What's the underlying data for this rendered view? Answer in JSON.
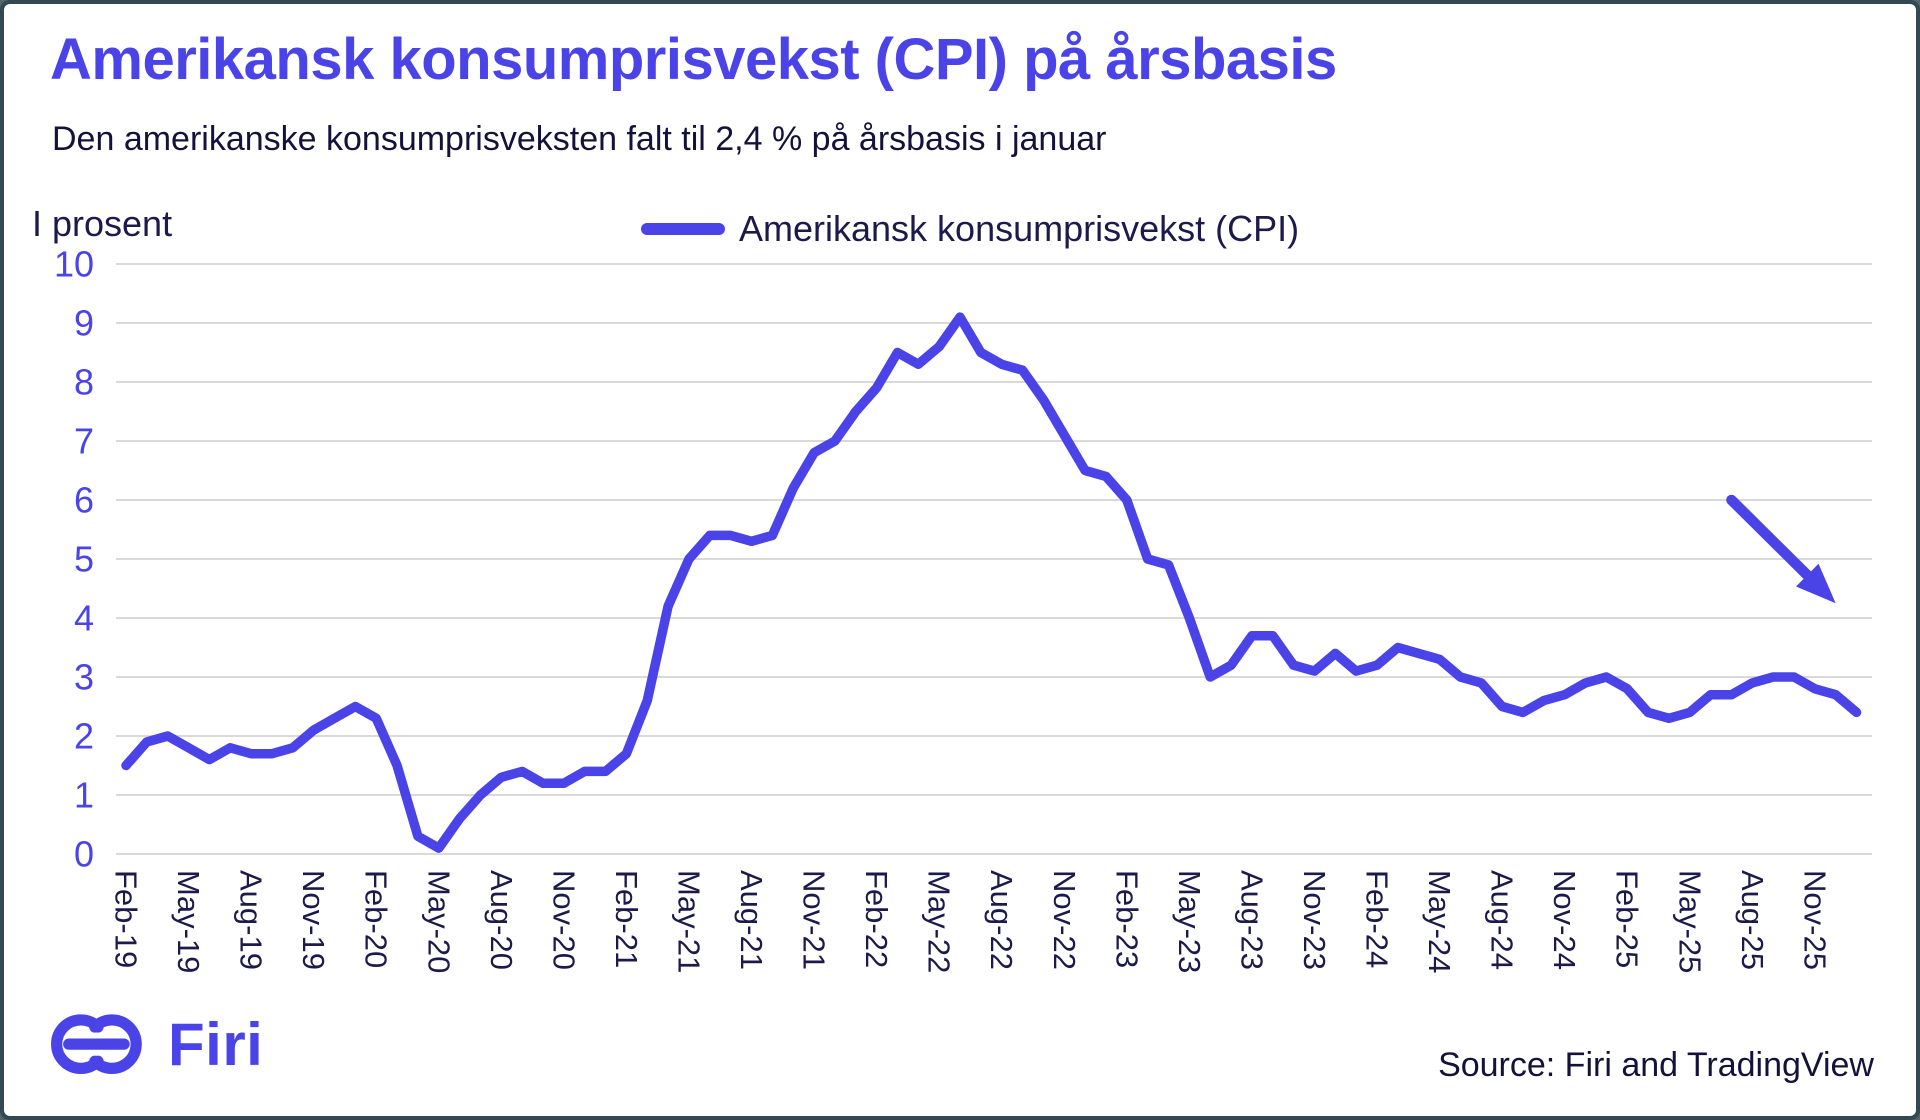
{
  "header": {
    "title": "Amerikansk konsumprisvekst (CPI) på årsbasis",
    "subtitle": "Den amerikanske konsumprisveksten falt til 2,4 % på årsbasis i januar"
  },
  "footer": {
    "brand": "Firi",
    "source": "Source: Firi and TradingView"
  },
  "colors": {
    "accent": "#4a43e8",
    "text_dark": "#1b1a4a",
    "grid": "#d9d9d9",
    "frame_border": "#334850",
    "background": "#ffffff"
  },
  "chart_data": {
    "type": "line",
    "title": "Amerikansk konsumprisvekst (CPI) på årsbasis",
    "xlabel": "",
    "ylabel": "I prosent",
    "unit_label": "I prosent",
    "ylim": [
      0,
      10
    ],
    "yticks": [
      0,
      1,
      2,
      3,
      4,
      5,
      6,
      7,
      8,
      9,
      10
    ],
    "grid": "horizontal",
    "legend_position": "top-center",
    "x": [
      "Feb-19",
      "Mar-19",
      "Apr-19",
      "May-19",
      "Jun-19",
      "Jul-19",
      "Aug-19",
      "Sep-19",
      "Oct-19",
      "Nov-19",
      "Dec-19",
      "Jan-20",
      "Feb-20",
      "Mar-20",
      "Apr-20",
      "May-20",
      "Jun-20",
      "Jul-20",
      "Aug-20",
      "Sep-20",
      "Oct-20",
      "Nov-20",
      "Dec-20",
      "Jan-21",
      "Feb-21",
      "Mar-21",
      "Apr-21",
      "May-21",
      "Jun-21",
      "Jul-21",
      "Aug-21",
      "Sep-21",
      "Oct-21",
      "Nov-21",
      "Dec-21",
      "Jan-22",
      "Feb-22",
      "Mar-22",
      "Apr-22",
      "May-22",
      "Jun-22",
      "Jul-22",
      "Aug-22",
      "Sep-22",
      "Oct-22",
      "Nov-22",
      "Dec-22",
      "Jan-23",
      "Feb-23",
      "Mar-23",
      "Apr-23",
      "May-23",
      "Jun-23",
      "Jul-23",
      "Aug-23",
      "Sep-23",
      "Oct-23",
      "Nov-23",
      "Dec-23",
      "Jan-24",
      "Feb-24",
      "Mar-24",
      "Apr-24",
      "May-24",
      "Jun-24",
      "Jul-24",
      "Aug-24",
      "Sep-24",
      "Oct-24",
      "Nov-24",
      "Dec-24",
      "Jan-25",
      "Feb-25",
      "Mar-25",
      "Apr-25",
      "May-25",
      "Jun-25",
      "Jul-25",
      "Aug-25",
      "Sep-25",
      "Oct-25",
      "Nov-25",
      "Dec-25",
      "Jan-26"
    ],
    "x_tick_labels": [
      "Feb-19",
      "May-19",
      "Aug-19",
      "Nov-19",
      "Feb-20",
      "May-20",
      "Aug-20",
      "Nov-20",
      "Feb-21",
      "May-21",
      "Aug-21",
      "Nov-21",
      "Feb-22",
      "May-22",
      "Aug-22",
      "Nov-22",
      "Feb-23",
      "May-23",
      "Aug-23",
      "Nov-23",
      "Feb-24",
      "May-24",
      "Aug-24",
      "Nov-24",
      "Feb-25",
      "May-25",
      "Aug-25",
      "Nov-25"
    ],
    "series": [
      {
        "name": "Amerikansk konsumprisvekst (CPI)",
        "color": "#4a43e8",
        "values": [
          1.5,
          1.9,
          2.0,
          1.8,
          1.6,
          1.8,
          1.7,
          1.7,
          1.8,
          2.1,
          2.3,
          2.5,
          2.3,
          1.5,
          0.3,
          0.1,
          0.6,
          1.0,
          1.3,
          1.4,
          1.2,
          1.2,
          1.4,
          1.4,
          1.7,
          2.6,
          4.2,
          5.0,
          5.4,
          5.4,
          5.3,
          5.4,
          6.2,
          6.8,
          7.0,
          7.5,
          7.9,
          8.5,
          8.3,
          8.6,
          9.1,
          8.5,
          8.3,
          8.2,
          7.7,
          7.1,
          6.5,
          6.4,
          6.0,
          5.0,
          4.9,
          4.0,
          3.0,
          3.2,
          3.7,
          3.7,
          3.2,
          3.1,
          3.4,
          3.1,
          3.2,
          3.5,
          3.4,
          3.3,
          3.0,
          2.9,
          2.5,
          2.4,
          2.6,
          2.7,
          2.9,
          3.0,
          2.8,
          2.4,
          2.3,
          2.4,
          2.7,
          2.7,
          2.9,
          3.0,
          3.0,
          2.8,
          2.7,
          2.4
        ]
      }
    ],
    "annotation": {
      "type": "arrow",
      "direction": "down-right",
      "from": {
        "month": "Jul-25",
        "value": 6.0
      },
      "to": {
        "month": "Dec-25",
        "value": 4.25
      }
    }
  }
}
